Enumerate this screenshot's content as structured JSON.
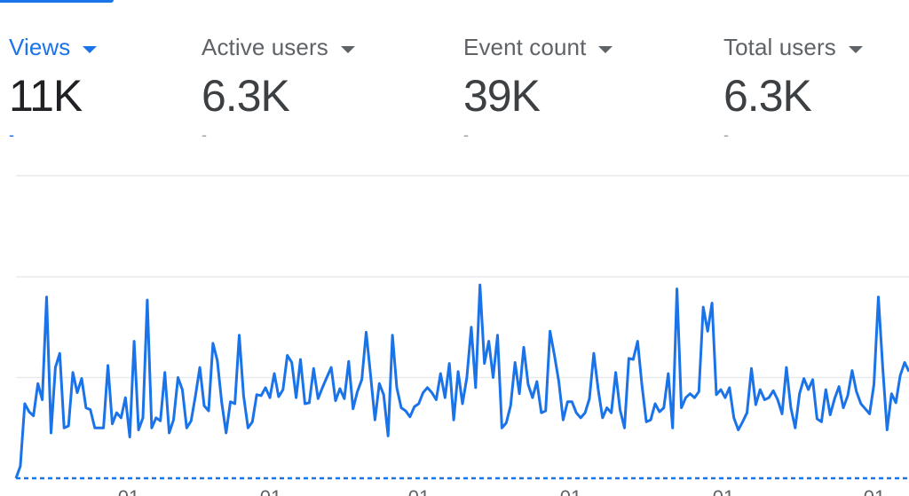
{
  "metrics": [
    {
      "label": "Views",
      "value": "11K",
      "delta": "-",
      "active": true
    },
    {
      "label": "Active users",
      "value": "6.3K",
      "delta": "-",
      "active": false
    },
    {
      "label": "Event count",
      "value": "39K",
      "delta": "-",
      "active": false
    },
    {
      "label": "Total users",
      "value": "6.3K",
      "delta": "-",
      "active": false
    }
  ],
  "colors": {
    "accent": "#1a73e8",
    "grid": "#e8eaed",
    "text": "#5f6368"
  },
  "icons": {
    "dropdown": "caret-down-icon"
  },
  "chart_data": {
    "type": "line",
    "grid": true,
    "ylim": [
      0,
      200
    ],
    "x_tick_labels": [
      "01",
      "01",
      "01",
      "01",
      "01",
      "01"
    ],
    "series": [
      {
        "color": "#1a73e8",
        "style": "solid",
        "values": [
          0,
          12,
          74,
          66,
          62,
          94,
          78,
          180,
          45,
          110,
          124,
          50,
          52,
          105,
          85,
          99,
          70,
          68,
          50,
          50,
          50,
          112,
          54,
          65,
          60,
          80,
          41,
          136,
          48,
          60,
          177,
          50,
          60,
          57,
          105,
          45,
          58,
          100,
          88,
          50,
          57,
          82,
          110,
          72,
          67,
          134,
          117,
          75,
          45,
          76,
          74,
          142,
          82,
          50,
          56,
          83,
          82,
          90,
          80,
          104,
          81,
          88,
          122,
          115,
          80,
          118,
          74,
          75,
          109,
          79,
          90,
          100,
          110,
          77,
          89,
          79,
          116,
          69,
          86,
          98,
          145,
          103,
          58,
          94,
          83,
          42,
          142,
          90,
          70,
          67,
          61,
          71,
          74,
          85,
          90,
          85,
          78,
          104,
          80,
          114,
          58,
          106,
          74,
          100,
          150,
          90,
          192,
          114,
          136,
          100,
          142,
          50,
          55,
          72,
          115,
          84,
          130,
          93,
          80,
          96,
          65,
          67,
          146,
          122,
          96,
          58,
          76,
          76,
          65,
          60,
          65,
          79,
          124,
          88,
          60,
          70,
          65,
          105,
          68,
          50,
          119,
          118,
          136,
          92,
          56,
          58,
          74,
          66,
          70,
          104,
          50,
          188,
          70,
          80,
          84,
          80,
          86,
          170,
          146,
          174,
          83,
          88,
          80,
          90,
          60,
          48,
          56,
          65,
          109,
          73,
          88,
          78,
          80,
          87,
          78,
          64,
          110,
          70,
          50,
          84,
          99,
          88,
          98,
          59,
          56,
          88,
          63,
          79,
          91,
          70,
          82,
          107,
          86,
          74,
          69,
          64,
          93,
          180,
          110,
          48,
          84,
          75,
          102,
          115,
          106
        ]
      },
      {
        "color": "#1a73e8",
        "style": "dashed",
        "values": [
          0,
          0
        ]
      }
    ]
  }
}
